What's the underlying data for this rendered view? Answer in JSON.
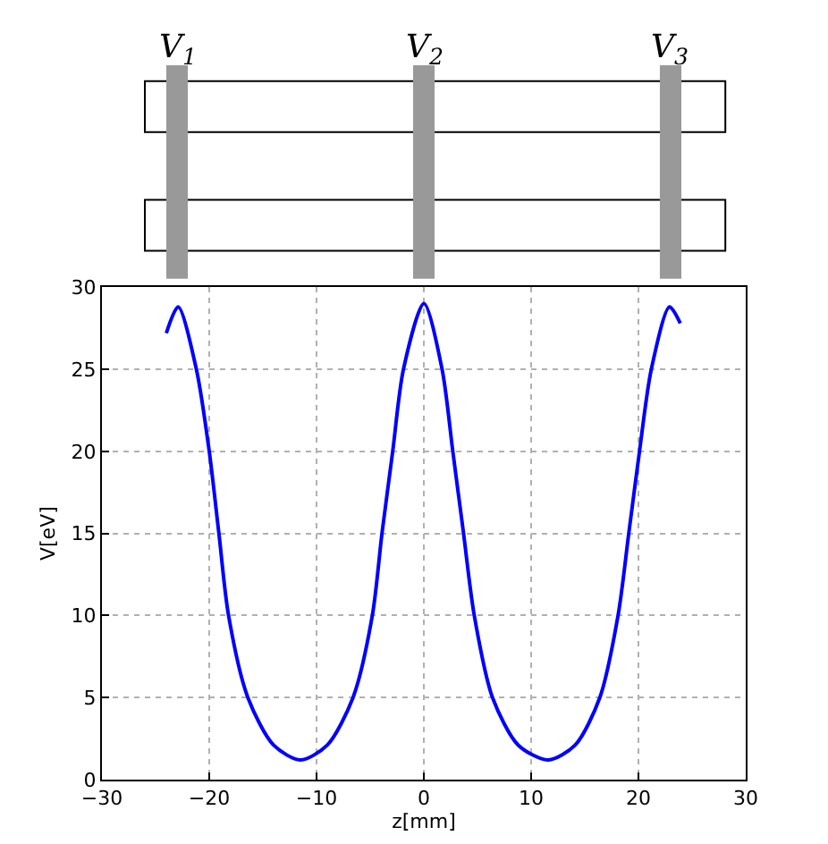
{
  "chart_data": {
    "type": "line",
    "xlabel": "z[mm]",
    "ylabel": "V[eV]",
    "x": [
      -24.0,
      -22.9,
      -21.2,
      -20.0,
      -19.1,
      -18.2,
      -16.4,
      -14.0,
      -11.5,
      -9.0,
      -6.6,
      -4.8,
      -3.9,
      -2.9,
      -1.9,
      0.0,
      1.7,
      2.7,
      3.7,
      4.7,
      6.4,
      8.8,
      11.6,
      14.1,
      16.4,
      18.1,
      19.1,
      20.1,
      21.2,
      22.9,
      23.9
    ],
    "series": [
      {
        "color": "#0000ff",
        "values": [
          27.2,
          28.8,
          25,
          20,
          15,
          10,
          5,
          2.1,
          1.2,
          2.1,
          5,
          10,
          15,
          20,
          25,
          29.0,
          25,
          20,
          15,
          10,
          5,
          2.1,
          1.2,
          2.1,
          5,
          10,
          15,
          20,
          25,
          28.8,
          27.8
        ]
      }
    ],
    "xlim": [
      -30,
      30
    ],
    "xticks": [
      -30,
      -20,
      -10,
      0,
      10,
      20,
      30
    ],
    "ylim": [
      0,
      30
    ],
    "yticks": [
      0,
      5,
      10,
      15,
      20,
      25,
      30
    ],
    "annotations": [
      "V$_{1}$",
      "V$_{2}$",
      "V$_{3}$"
    ],
    "grid": true,
    "line_style": "solid",
    "marker": "none"
  }
}
